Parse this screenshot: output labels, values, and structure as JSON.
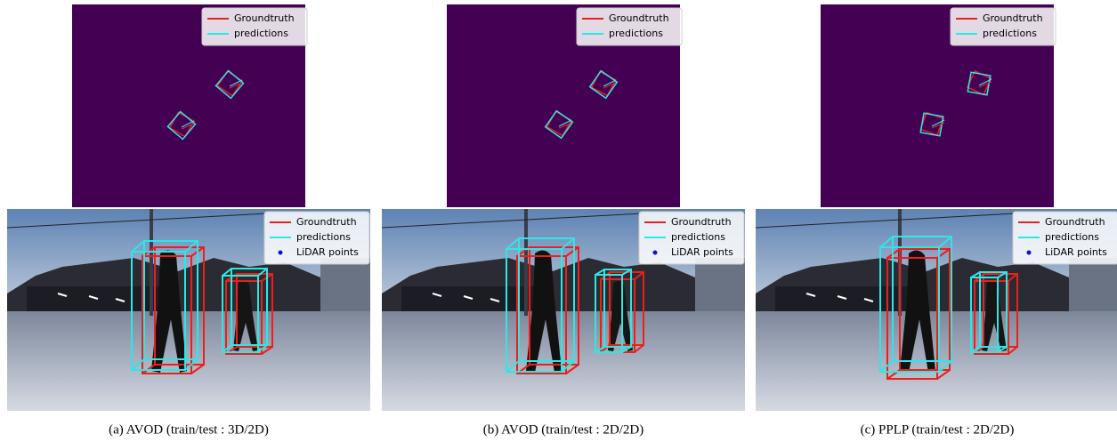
{
  "panels": [
    {
      "bev_legend": [
        "Groundtruth",
        "predictions"
      ],
      "camera_legend": [
        "Groundtruth",
        "predictions",
        "LiDAR points"
      ],
      "caption": "(a) AVOD (train/test : 3D/2D)"
    },
    {
      "bev_legend": [
        "Groundtruth",
        "predictions"
      ],
      "camera_legend": [
        "Groundtruth",
        "predictions",
        "LiDAR points"
      ],
      "caption": "(b) AVOD (train/test : 2D/2D)"
    },
    {
      "bev_legend": [
        "Groundtruth",
        "predictions"
      ],
      "camera_legend": [
        "Groundtruth",
        "predictions",
        "LiDAR points"
      ],
      "caption": "(c) PPLP (train/test : 2D/2D)"
    }
  ]
}
